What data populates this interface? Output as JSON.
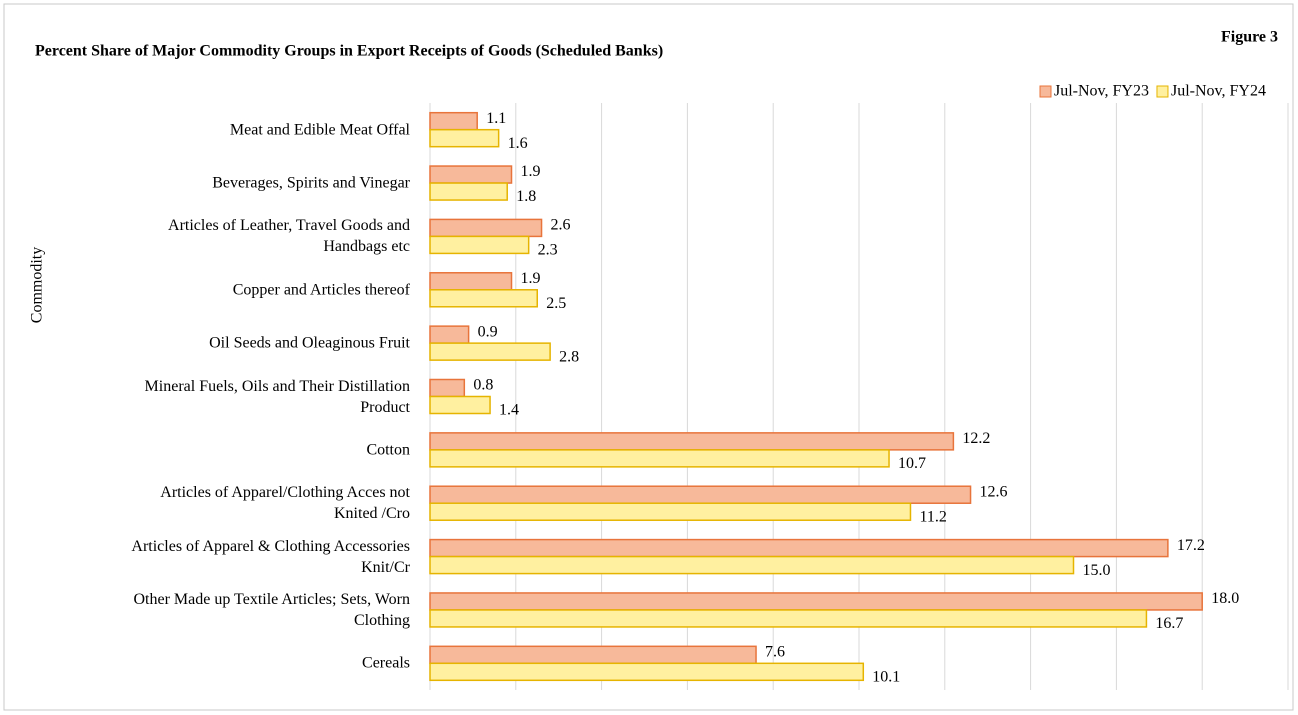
{
  "chart_data": {
    "type": "hbar",
    "title": "Percent Share of Major Commodity Groups in Export Receipts of Goods (Scheduled Banks)",
    "annotation": "Figure 3",
    "y_label": "Commodity",
    "categories": [
      "Meat and Edible Meat Offal",
      "Beverages, Spirits and Vinegar",
      "Articles of Leather, Travel Goods and\nHandbags etc",
      "Copper and Articles thereof",
      "Oil Seeds and Oleaginous Fruit",
      "Mineral Fuels, Oils and Their Distillation\nProduct",
      "Cotton",
      "Articles of Apparel/Clothing Acces not\nKnited /Cro",
      "Articles of Apparel & Clothing Accessories\nKnit/Cr",
      "Other Made up Textile Articles; Sets, Worn\nClothing",
      "Cereals"
    ],
    "series": [
      {
        "name": "Jul-Nov, FY23",
        "color": "#f7b99a",
        "stroke": "#e8743b",
        "values": [
          1.1,
          1.9,
          2.6,
          1.9,
          0.9,
          0.8,
          12.2,
          12.6,
          17.2,
          18.0,
          7.6
        ],
        "value_labels": [
          "1.1",
          "1.9",
          "2.6",
          "1.9",
          "0.9",
          "0.8",
          "12.2",
          "12.6",
          "17.2",
          "18.0",
          "7.6"
        ]
      },
      {
        "name": "Jul-Nov, FY24",
        "color": "#fff0a0",
        "stroke": "#e6b400",
        "values": [
          1.6,
          1.8,
          2.3,
          2.5,
          2.8,
          1.4,
          10.7,
          11.2,
          15.0,
          16.7,
          10.1
        ],
        "value_labels": [
          "1.6",
          "1.8",
          "2.3",
          "2.5",
          "2.8",
          "1.4",
          "10.7",
          "11.2",
          "15.0",
          "16.7",
          "10.1"
        ]
      }
    ],
    "xlim": [
      0,
      20
    ],
    "xticks": [
      0,
      2,
      4,
      6,
      8,
      10,
      12,
      14,
      16,
      18,
      20
    ],
    "grid": true,
    "legend": "top-right"
  }
}
